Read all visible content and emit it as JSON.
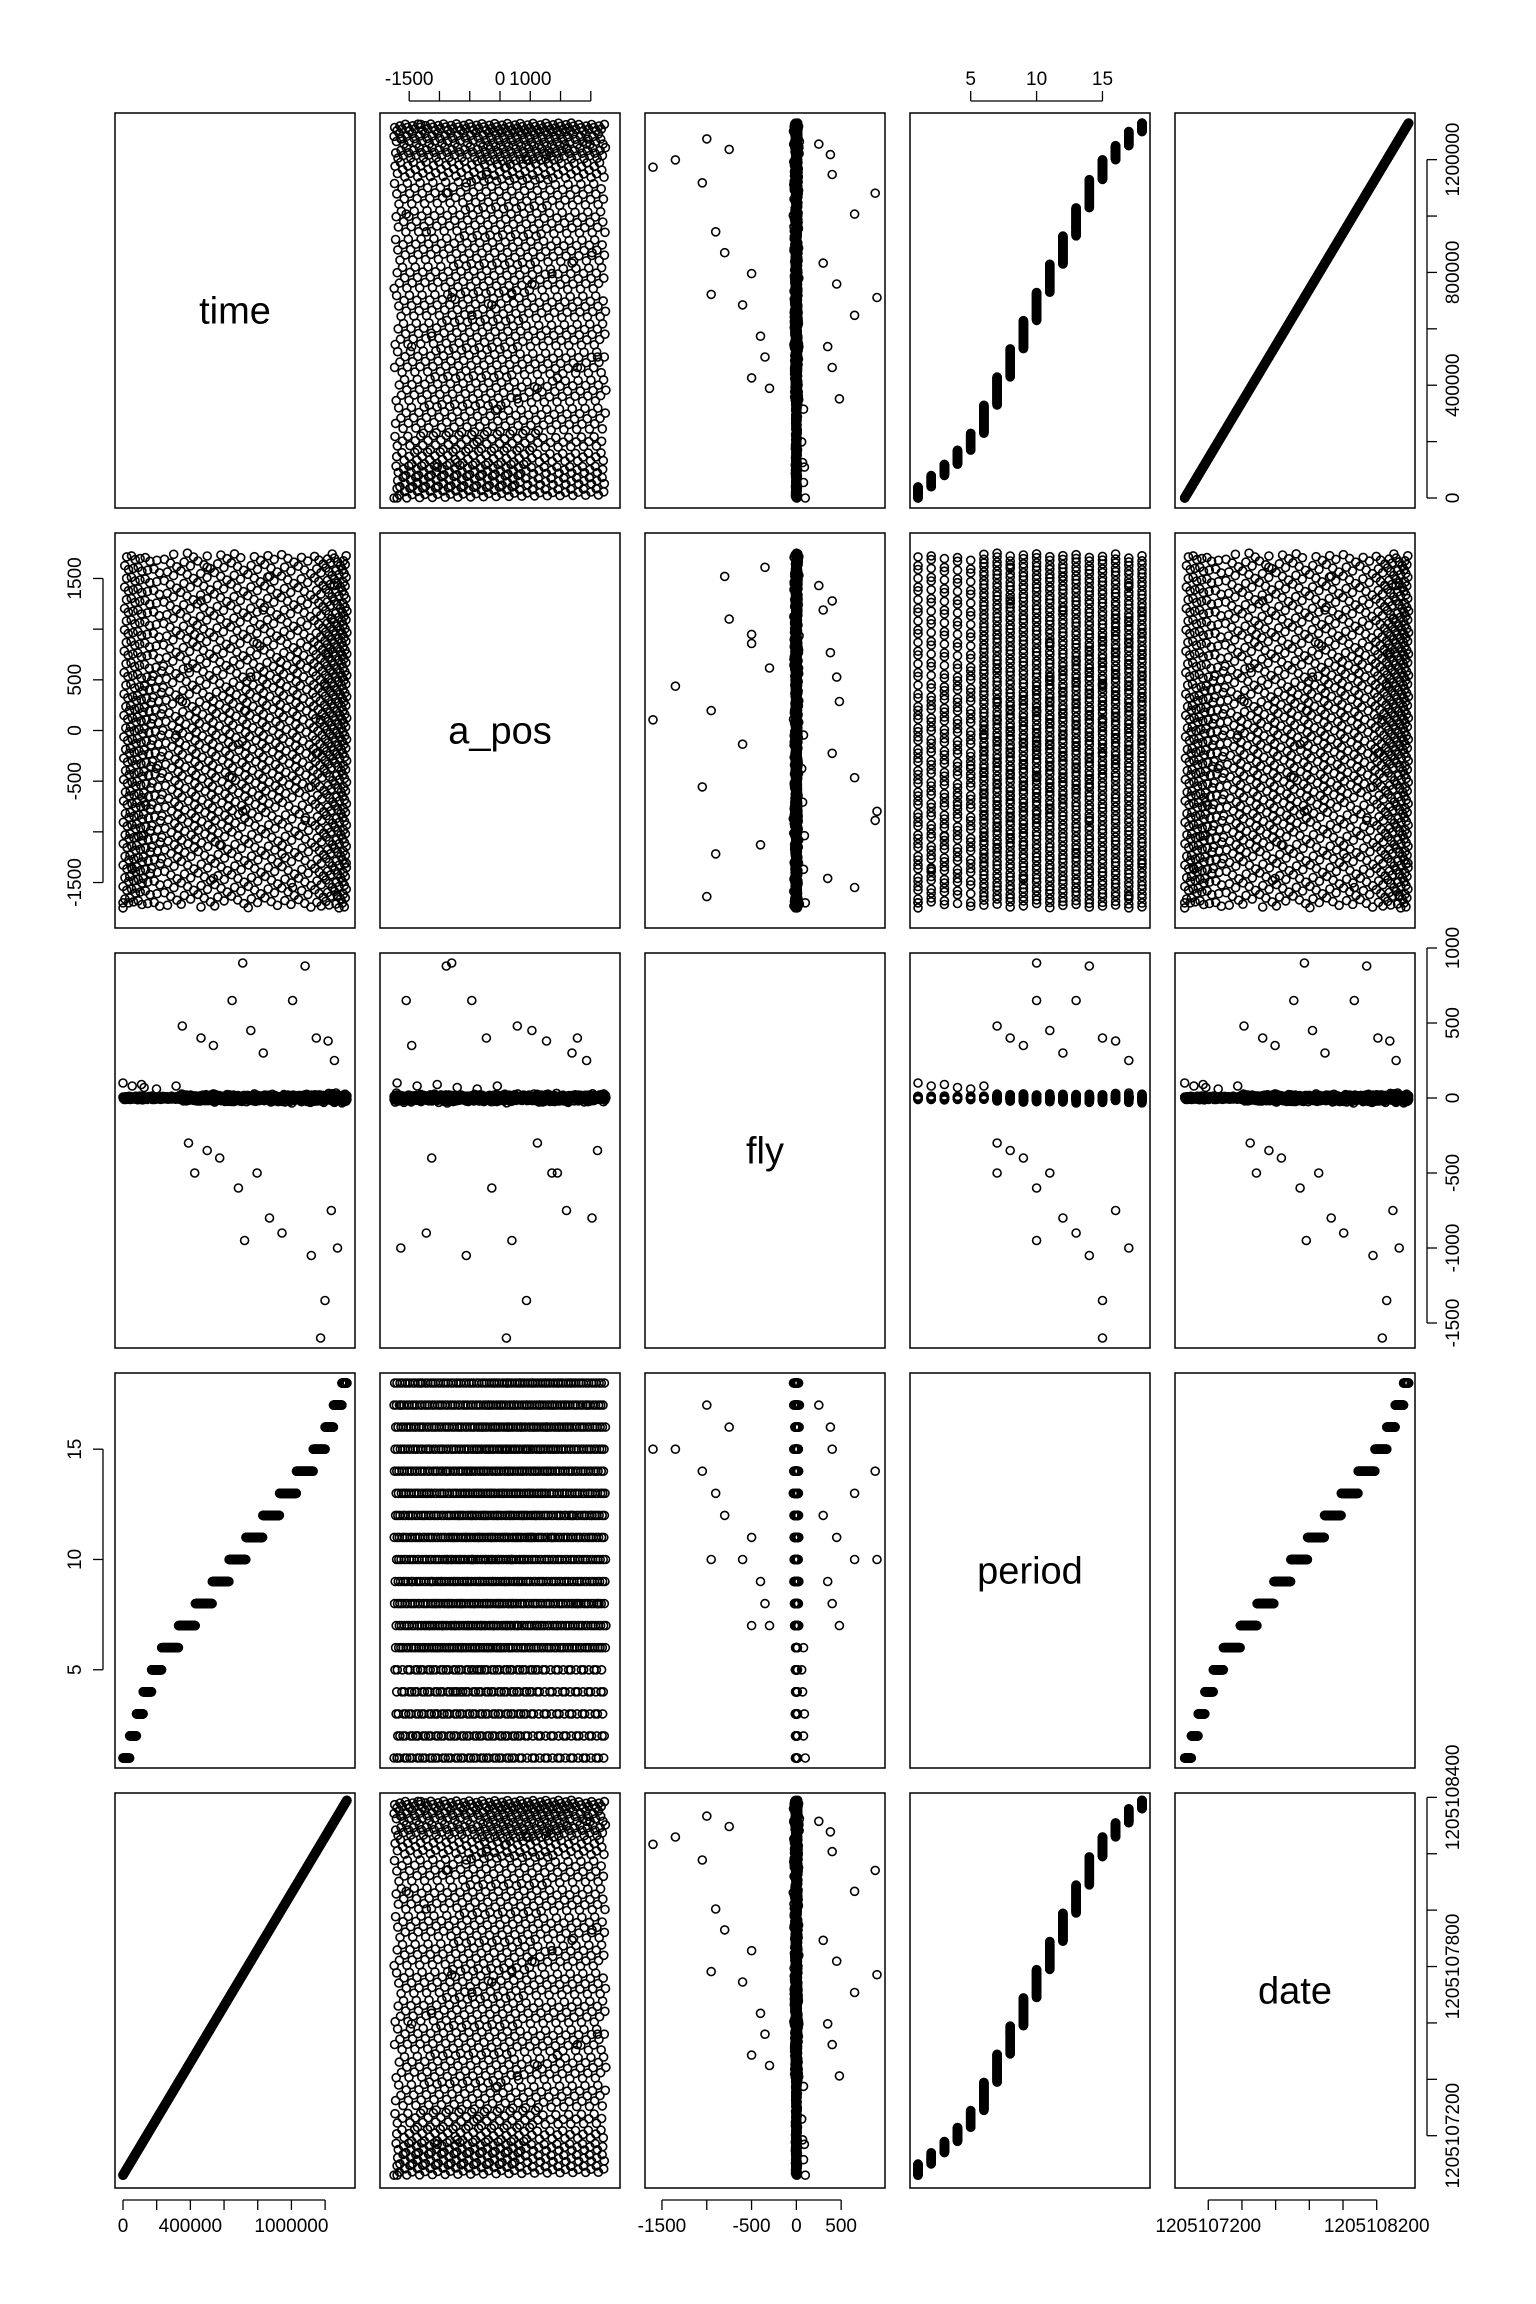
{
  "chart_data": {
    "type": "scatter",
    "variables": [
      "time",
      "a_pos",
      "fly",
      "period",
      "date"
    ],
    "ranges": {
      "time": [
        0,
        1330000
      ],
      "a_pos": [
        -1850,
        1850
      ],
      "fly": [
        -1600,
        900
      ],
      "period": [
        1,
        18
      ],
      "date": [
        1205107050,
        1205108380
      ]
    },
    "axes": {
      "top": [
        {
          "column": "a_pos",
          "ticks": [
            -1500,
            -1000,
            -500,
            0,
            500,
            1000,
            1500
          ],
          "labels": [
            "-1500",
            "",
            "",
            "0",
            "1000",
            "",
            ""
          ]
        },
        {
          "column": "period",
          "ticks": [
            5,
            10,
            15
          ],
          "labels": [
            "5",
            "10",
            "15"
          ]
        }
      ],
      "bottom": [
        {
          "column": "time",
          "ticks": [
            0,
            200000,
            400000,
            600000,
            800000,
            1000000,
            1200000
          ],
          "labels": [
            "0",
            "",
            "400000",
            "",
            "",
            "1000000",
            ""
          ]
        },
        {
          "column": "fly",
          "ticks": [
            -1500,
            -1000,
            -500,
            0,
            500
          ],
          "labels": [
            "-1500",
            "",
            "-500",
            "0",
            "500"
          ]
        },
        {
          "column": "date",
          "ticks": [
            1205107200,
            1205107400,
            1205107600,
            1205107800,
            1205108000,
            1205108200
          ],
          "labels": [
            "1205107200",
            "",
            "",
            "",
            "",
            "1205108200"
          ]
        }
      ],
      "left": [
        {
          "row": "a_pos",
          "ticks": [
            -1500,
            -1000,
            -500,
            0,
            500,
            1000,
            1500
          ],
          "labels": [
            "-1500",
            "",
            "-500",
            "0",
            "500",
            "",
            "1500"
          ]
        },
        {
          "row": "period",
          "ticks": [
            5,
            10,
            15
          ],
          "labels": [
            "5",
            "10",
            "15"
          ]
        }
      ],
      "right": [
        {
          "row": "time",
          "ticks": [
            0,
            200000,
            400000,
            600000,
            800000,
            1000000,
            1200000
          ],
          "labels": [
            "0",
            "",
            "400000",
            "",
            "800000",
            "",
            "1200000"
          ]
        },
        {
          "row": "fly",
          "ticks": [
            -1500,
            -1000,
            -500,
            0,
            500,
            1000
          ],
          "labels": [
            "-1500",
            "-1000",
            "-500",
            "0",
            "500",
            "1000"
          ]
        },
        {
          "row": "date",
          "ticks": [
            1205107200,
            1205107400,
            1205107600,
            1205107800,
            1205108000,
            1205108200,
            1205108400
          ],
          "labels": [
            "1205107200",
            "",
            "",
            "1205107800",
            "",
            "",
            "1205108400"
          ]
        }
      ]
    },
    "period_boundaries_time": [
      0,
      40000,
      80000,
      120000,
      170000,
      230000,
      330000,
      430000,
      530000,
      630000,
      730000,
      830000,
      930000,
      1030000,
      1130000,
      1200000,
      1250000,
      1300000,
      1330000
    ],
    "fly_outliers": [
      {
        "period": 1,
        "fly": 100
      },
      {
        "period": 2,
        "fly": 80
      },
      {
        "period": 3,
        "fly": 90
      },
      {
        "period": 4,
        "fly": 70
      },
      {
        "period": 5,
        "fly": 60
      },
      {
        "period": 6,
        "fly": 80
      },
      {
        "period": 7,
        "fly": 480
      },
      {
        "period": 7,
        "fly": -300
      },
      {
        "period": 7,
        "fly": -500
      },
      {
        "period": 8,
        "fly": 400
      },
      {
        "period": 8,
        "fly": -350
      },
      {
        "period": 9,
        "fly": 350
      },
      {
        "period": 9,
        "fly": -400
      },
      {
        "period": 10,
        "fly": 900
      },
      {
        "period": 10,
        "fly": 650
      },
      {
        "period": 10,
        "fly": -600
      },
      {
        "period": 10,
        "fly": -950
      },
      {
        "period": 11,
        "fly": 450
      },
      {
        "period": 11,
        "fly": -500
      },
      {
        "period": 12,
        "fly": 300
      },
      {
        "period": 12,
        "fly": -800
      },
      {
        "period": 13,
        "fly": 650
      },
      {
        "period": 13,
        "fly": -900
      },
      {
        "period": 14,
        "fly": 880
      },
      {
        "period": 14,
        "fly": -1050
      },
      {
        "period": 15,
        "fly": 400
      },
      {
        "period": 15,
        "fly": -1600
      },
      {
        "period": 15,
        "fly": -1350
      },
      {
        "period": 16,
        "fly": 380
      },
      {
        "period": 16,
        "fly": -750
      },
      {
        "period": 17,
        "fly": 250
      },
      {
        "period": 17,
        "fly": -1000
      },
      {
        "period": 18,
        "fly": -20
      }
    ]
  }
}
